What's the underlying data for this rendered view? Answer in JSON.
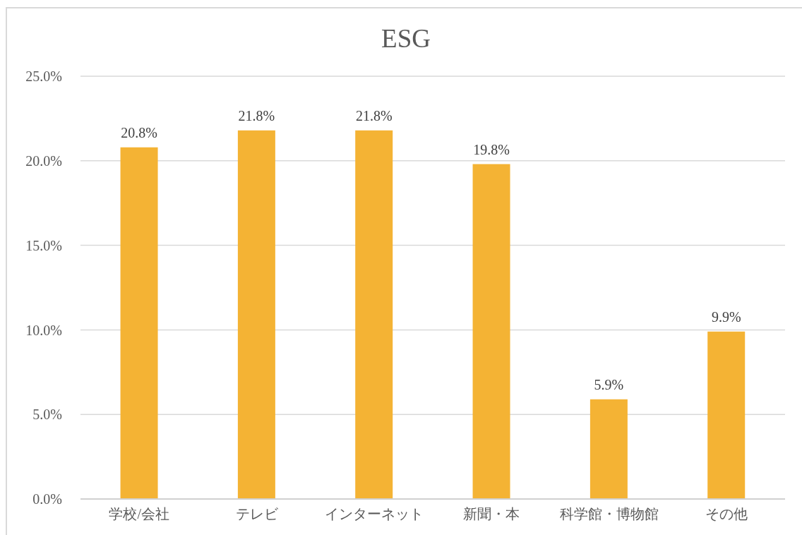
{
  "chart_data": {
    "type": "bar",
    "title": "ESG",
    "categories": [
      "学校/会社",
      "テレビ",
      "インターネット",
      "新聞・本",
      "科学館・博物館",
      "その他"
    ],
    "values": [
      20.8,
      21.8,
      21.8,
      19.8,
      5.9,
      9.9
    ],
    "color": "#f4b334",
    "value_labels": [
      "20.8%",
      "21.8%",
      "21.8%",
      "19.8%",
      "5.9%",
      "9.9%"
    ],
    "ylim": [
      0,
      25
    ],
    "yticks": [
      {
        "value": 0,
        "label": "0.0%"
      },
      {
        "value": 5,
        "label": "5.0%"
      },
      {
        "value": 10,
        "label": "10.0%"
      },
      {
        "value": 15,
        "label": "15.0%"
      },
      {
        "value": 20,
        "label": "20.0%"
      },
      {
        "value": 25,
        "label": "25.0%"
      }
    ],
    "grid": "y"
  }
}
